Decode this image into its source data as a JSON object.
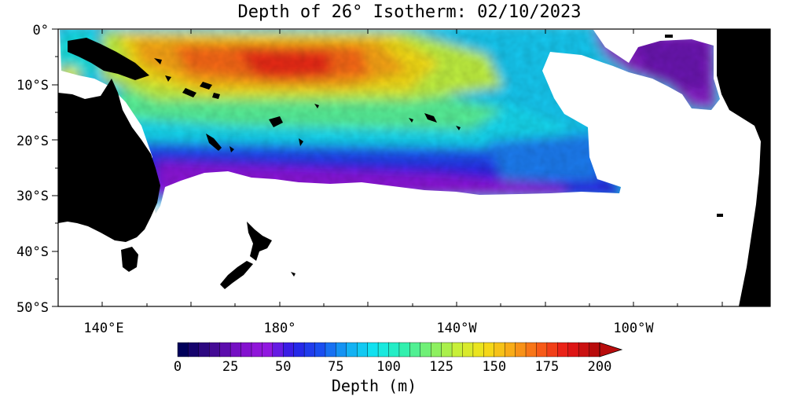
{
  "title": "Depth of 26° Isotherm: 02/10/2023",
  "latitude_labels": [
    "0°",
    "10°S",
    "20°S",
    "30°S",
    "40°S",
    "50°S"
  ],
  "longitude_labels": [
    "140°E",
    "180°",
    "140°W",
    "100°W"
  ],
  "colorbar": {
    "label": "Depth (m)",
    "tick_labels": [
      "0",
      "25",
      "50",
      "75",
      "100",
      "125",
      "150",
      "175",
      "200"
    ],
    "min": 0,
    "max": 200,
    "step": 5,
    "overflow_arrow": true,
    "stops": [
      "#00005a",
      "#3a0a8c",
      "#7a10c8",
      "#9a18e0",
      "#2a1ee6",
      "#1a4ef0",
      "#14a8f4",
      "#12e6f0",
      "#2cf0b4",
      "#7cf06c",
      "#c8f038",
      "#f4e018",
      "#f8a818",
      "#f86018",
      "#e81818",
      "#b80c0c"
    ]
  },
  "colors": {
    "land": "#000000",
    "no_data": "#ffffff",
    "frame": "#000000"
  }
}
